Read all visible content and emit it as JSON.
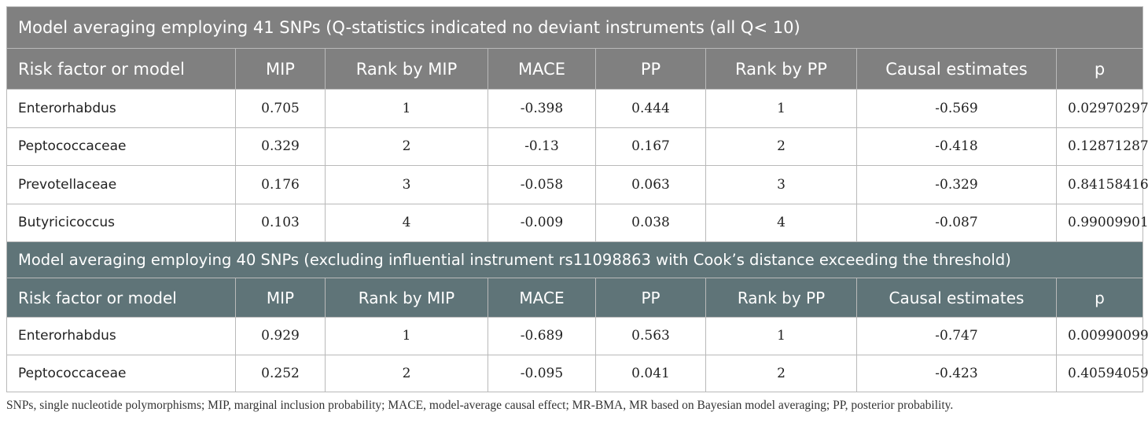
{
  "section1": {
    "title": "Model averaging employing 41 SNPs (Q-statistics indicated no deviant instruments (all Q< 10)",
    "headers": [
      "Risk factor or model",
      "MIP",
      "Rank by MIP",
      "MACE",
      "PP",
      "Rank by PP",
      "Causal estimates",
      "p"
    ],
    "rows": [
      [
        "Enterorhabdus",
        "0.705",
        "1",
        "-0.398",
        "0.444",
        "1",
        "-0.569",
        "0.02970297"
      ],
      [
        "Peptococcaceae",
        "0.329",
        "2",
        "-0.13",
        "0.167",
        "2",
        "-0.418",
        "0.12871287"
      ],
      [
        "Prevotellaceae",
        "0.176",
        "3",
        "-0.058",
        "0.063",
        "3",
        "-0.329",
        "0.84158416"
      ],
      [
        "Butyricicoccus",
        "0.103",
        "4",
        "-0.009",
        "0.038",
        "4",
        "-0.087",
        "0.99009901"
      ]
    ]
  },
  "section2": {
    "title": "Model averaging employing 40 SNPs (excluding influential instrument rs11098863 with Cook’s distance exceeding the threshold)",
    "headers": [
      "Risk factor or model",
      "MIP",
      "Rank by MIP",
      "MACE",
      "PP",
      "Rank by PP",
      "Causal estimates",
      "p"
    ],
    "rows": [
      [
        "Enterorhabdus",
        "0.929",
        "1",
        "-0.689",
        "0.563",
        "1",
        "-0.747",
        "0.00990099"
      ],
      [
        "Peptococcaceae",
        "0.252",
        "2",
        "-0.095",
        "0.041",
        "2",
        "-0.423",
        "0.40594059"
      ]
    ]
  },
  "footnote": "SNPs, single nucleotide polymorphisms; MIP, marginal inclusion probability; MACE, model-average causal effect; MR-BMA, MR based on Bayesian model averaging; PP, posterior probability.",
  "colors": {
    "section1_bg": "#808080",
    "section2_bg": "#5f7478",
    "border": "#b9b9b9"
  }
}
